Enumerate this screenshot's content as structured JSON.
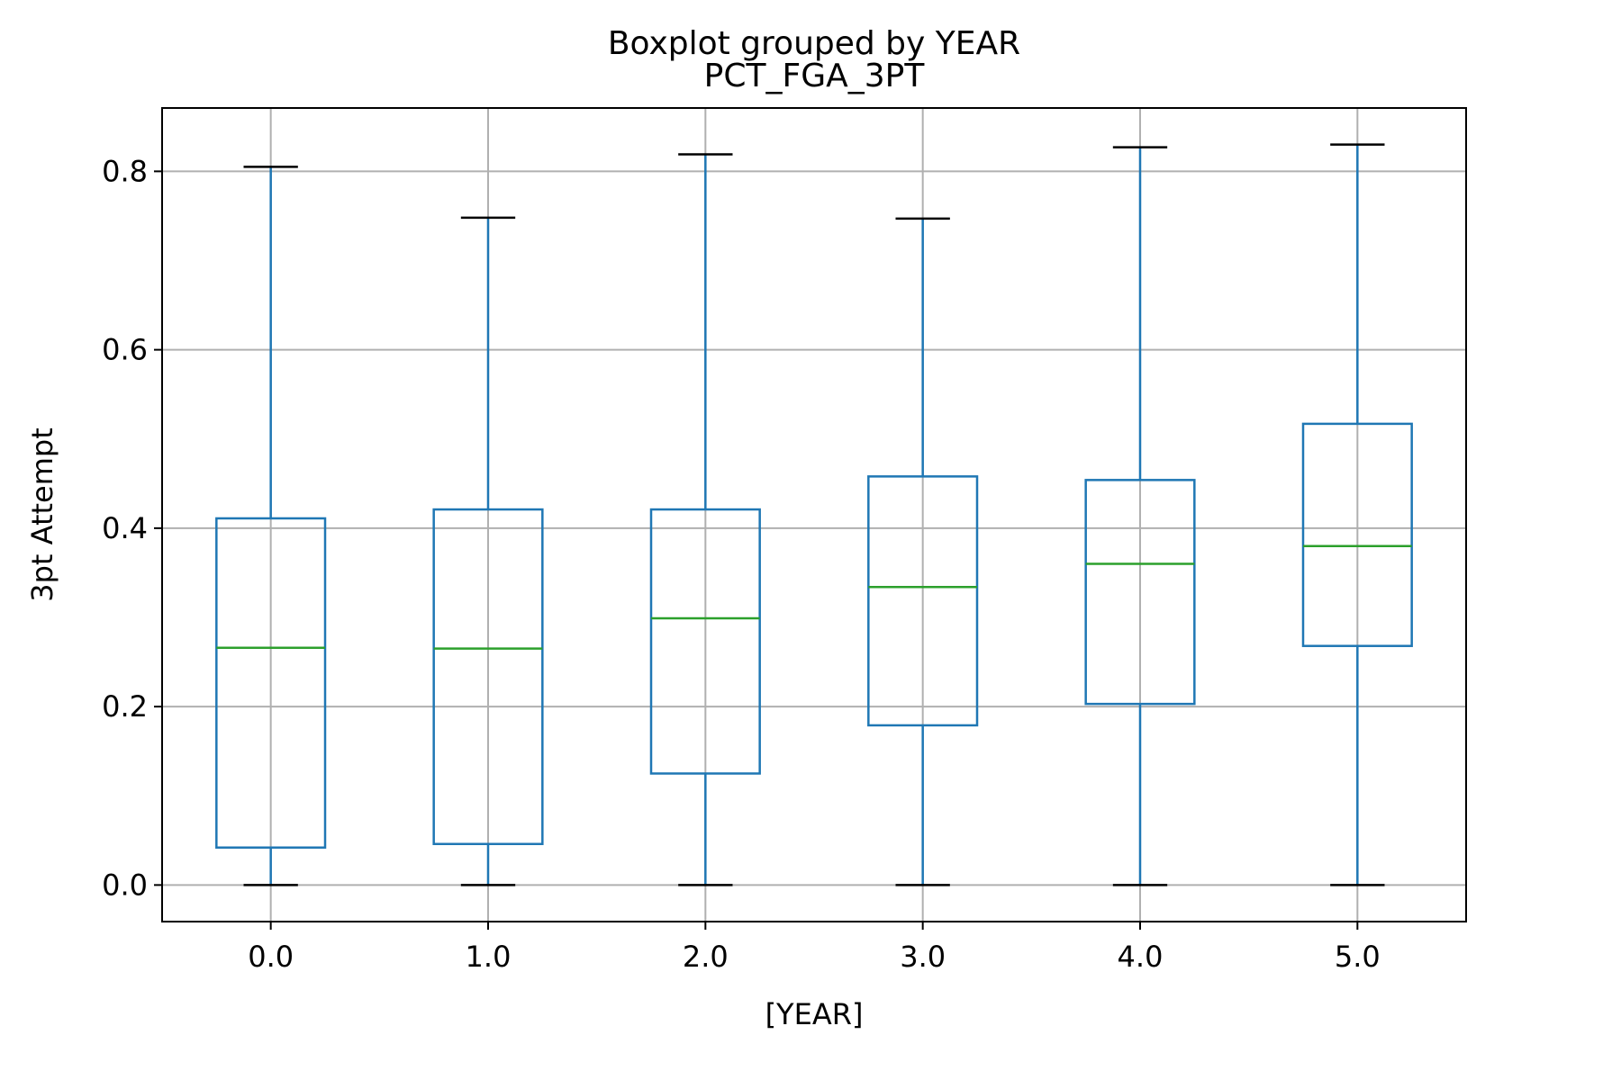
{
  "chart_data": {
    "type": "box",
    "suptitle": "Boxplot grouped by YEAR",
    "title": "PCT_FGA_3PT",
    "xlabel": "[YEAR]",
    "ylabel": "3pt Attempt",
    "categories": [
      "0.0",
      "1.0",
      "2.0",
      "3.0",
      "4.0",
      "5.0"
    ],
    "boxes": [
      {
        "category": "0.0",
        "whisker_low": 0.0,
        "q1": 0.042,
        "median": 0.266,
        "q3": 0.411,
        "whisker_high": 0.805
      },
      {
        "category": "1.0",
        "whisker_low": 0.0,
        "q1": 0.046,
        "median": 0.265,
        "q3": 0.421,
        "whisker_high": 0.748
      },
      {
        "category": "2.0",
        "whisker_low": 0.0,
        "q1": 0.125,
        "median": 0.299,
        "q3": 0.421,
        "whisker_high": 0.819
      },
      {
        "category": "3.0",
        "whisker_low": 0.0,
        "q1": 0.179,
        "median": 0.334,
        "q3": 0.458,
        "whisker_high": 0.747
      },
      {
        "category": "4.0",
        "whisker_low": 0.0,
        "q1": 0.203,
        "median": 0.36,
        "q3": 0.454,
        "whisker_high": 0.827
      },
      {
        "category": "5.0",
        "whisker_low": 0.0,
        "q1": 0.268,
        "median": 0.38,
        "q3": 0.517,
        "whisker_high": 0.83
      }
    ],
    "yticks": [
      "0.0",
      "0.2",
      "0.4",
      "0.6",
      "0.8"
    ],
    "ylim": [
      -0.041,
      0.871
    ],
    "grid": true,
    "legend": "none",
    "colors": {
      "box": "#1f77b4",
      "median": "#2ca02c",
      "cap": "#000000",
      "grid": "#b0b0b0",
      "frame": "#000000"
    }
  }
}
